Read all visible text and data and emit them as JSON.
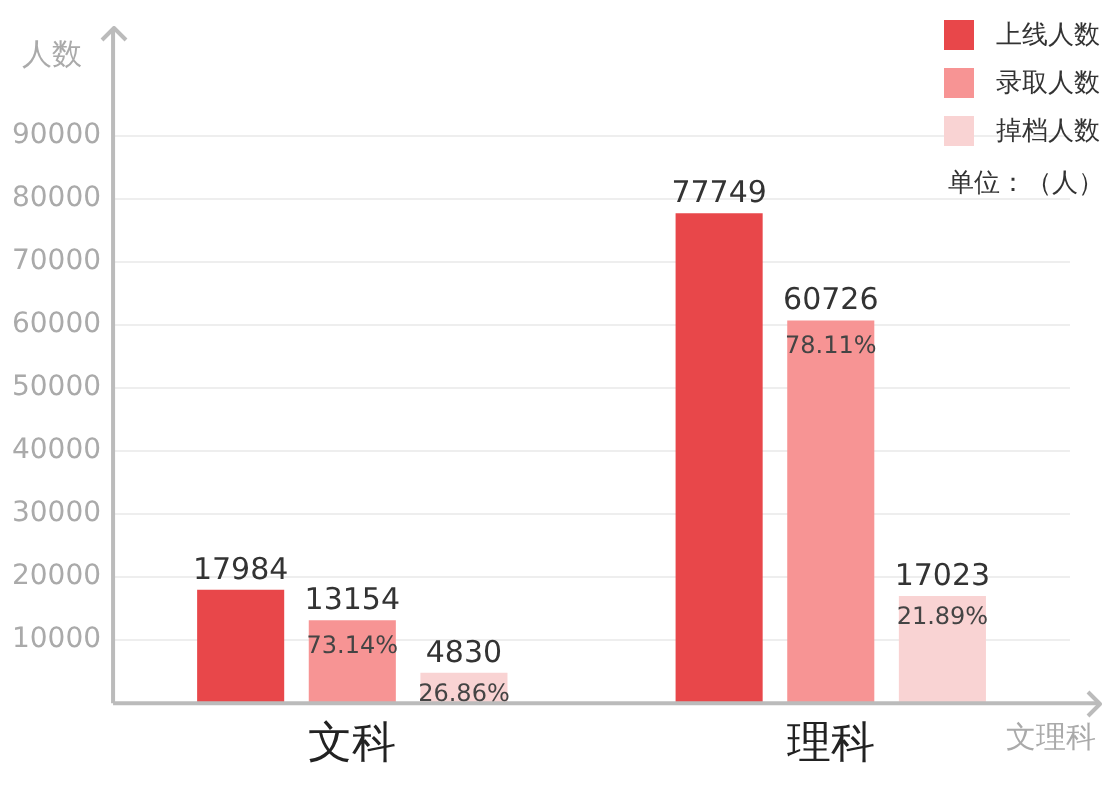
{
  "chart_data": {
    "type": "bar",
    "ylabel": "人数",
    "xlabel": "文理科",
    "categories": [
      "文科",
      "理科"
    ],
    "series": [
      {
        "name": "上线人数",
        "color": "#e8474a",
        "values": [
          17984,
          77749
        ]
      },
      {
        "name": "录取人数",
        "color": "#f79494",
        "values": [
          13154,
          60726
        ]
      },
      {
        "name": "掉档人数",
        "color": "#f9d3d3",
        "values": [
          4830,
          17023
        ]
      }
    ],
    "ylim": [
      0,
      107000
    ],
    "yticks": [
      10000,
      20000,
      30000,
      40000,
      50000,
      60000,
      70000,
      80000,
      90000
    ],
    "grid": "y",
    "legend": "top right",
    "data_labels": true,
    "annotations": [
      "单位：（人）",
      {
        "text": "73.14%",
        "x": "文科",
        "y": 13154
      },
      {
        "text": "78.11%",
        "x": "理科",
        "y": 60726
      },
      "26.86%",
      "21.89%"
    ]
  }
}
